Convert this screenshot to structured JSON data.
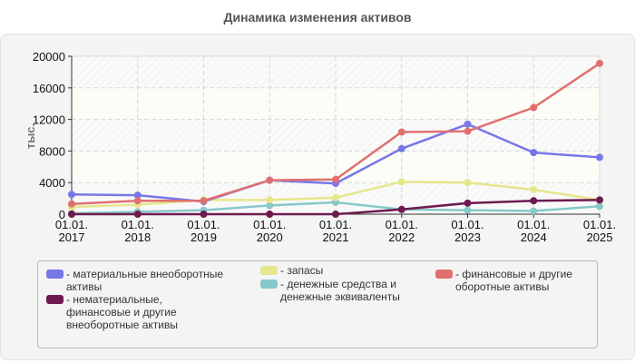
{
  "title": "Динамика изменения активов",
  "y_axis_label": "тыс.",
  "legend": [
    {
      "label": "- материальные внеоборотные\nактивы",
      "color": "#7777e8"
    },
    {
      "label": "- нематериальные,\nфинансовые и другие\nвнеоборотные активы",
      "color": "#6e1a50"
    },
    {
      "label": "- запасы",
      "color": "#e6e68c"
    },
    {
      "label": "- денежные средства и\nденежные эквиваленты",
      "color": "#88c8c8"
    },
    {
      "label": "- финансовые и другие\nоборотные активы",
      "color": "#e07070"
    }
  ],
  "chart_data": {
    "type": "line",
    "title": "Динамика изменения активов",
    "xlabel": "",
    "ylabel": "тыс.",
    "ylim": [
      0,
      20000
    ],
    "yticks": [
      0,
      4000,
      8000,
      12000,
      16000,
      20000
    ],
    "grid": true,
    "legend_position": "bottom",
    "categories": [
      "01.01.\n2017",
      "01.01.\n2018",
      "01.01.\n2019",
      "01.01.\n2020",
      "01.01.\n2021",
      "01.01.\n2022",
      "01.01.\n2023",
      "01.01.\n2024",
      "01.01.\n2025"
    ],
    "series": [
      {
        "name": "материальные внеоборотные активы",
        "color": "#7777e8",
        "values": [
          2500,
          2400,
          1600,
          4300,
          3900,
          8300,
          11400,
          7800,
          7200
        ]
      },
      {
        "name": "нематериальные, финансовые и другие внеоборотные активы",
        "color": "#6e1a50",
        "values": [
          0,
          0,
          0,
          0,
          0,
          600,
          1400,
          1700,
          1800
        ]
      },
      {
        "name": "запасы",
        "color": "#e6e68c",
        "values": [
          900,
          1200,
          1800,
          1800,
          2100,
          4100,
          4000,
          3100,
          1800
        ]
      },
      {
        "name": "денежные средства и денежные эквиваленты",
        "color": "#88c8c8",
        "values": [
          100,
          300,
          500,
          1100,
          1500,
          600,
          500,
          400,
          1000
        ]
      },
      {
        "name": "финансовые и другие оборотные активы",
        "color": "#e07070",
        "values": [
          1300,
          1700,
          1700,
          4300,
          4400,
          10400,
          10500,
          13500,
          19100
        ]
      }
    ]
  }
}
